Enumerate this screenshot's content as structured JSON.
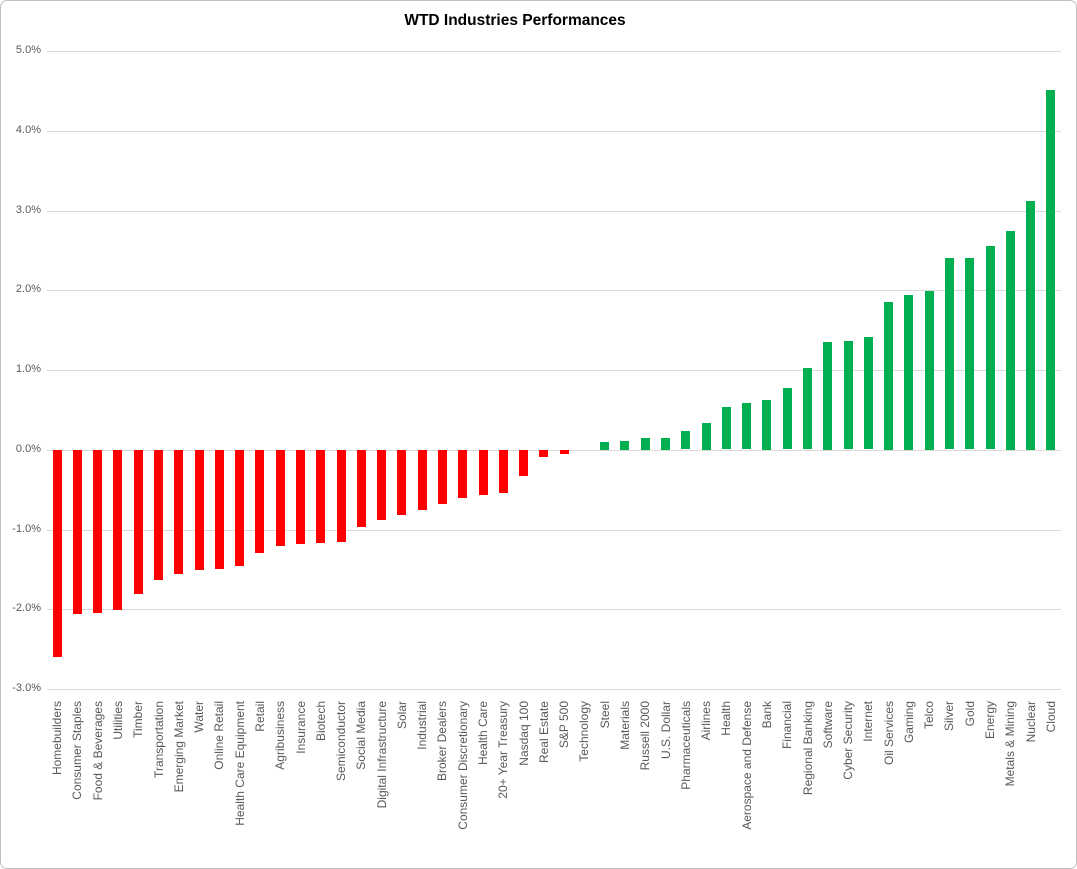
{
  "chart_data": {
    "type": "bar",
    "title": "WTD Industries Performances",
    "categories": [
      "Homebuilders",
      "Consumer Staples",
      "Food & Beverages",
      "Utilities",
      "Timber",
      "Transportation",
      "Emerging Market",
      "Water",
      "Online Retail",
      "Health Care Equipment",
      "Retail",
      "Agribusiness",
      "Insurance",
      "Biotech",
      "Semiconductor",
      "Social Media",
      "Digital Infrastructure",
      "Solar",
      "Industrial",
      "Broker Dealers",
      "Consumer Discretionary",
      "Health Care",
      "20+ Year Treasury",
      "Nasdaq 100",
      "Real Estate",
      "S&P 500",
      "Technology",
      "Steel",
      "Materials",
      "Russell 2000",
      "U.S. Dollar",
      "Pharmaceuticals",
      "Airlines",
      "Health",
      "Aerospace and Defense",
      "Bank",
      "Financial",
      "Regional Banking",
      "Software",
      "Cyber Security",
      "Internet",
      "Oil Services",
      "Gaming",
      "Telco",
      "Silver",
      "Gold",
      "Energy",
      "Metals & Mining",
      "Nuclear",
      "Cloud"
    ],
    "values": [
      -2.59,
      -2.06,
      -2.04,
      -2.01,
      -1.81,
      -1.63,
      -1.55,
      -1.5,
      -1.49,
      -1.45,
      -1.29,
      -1.21,
      -1.18,
      -1.17,
      -1.15,
      -0.97,
      -0.88,
      -0.82,
      -0.75,
      -0.68,
      -0.6,
      -0.56,
      -0.54,
      -0.32,
      -0.09,
      -0.05,
      0.0,
      0.1,
      0.11,
      0.15,
      0.15,
      0.23,
      0.34,
      0.53,
      0.58,
      0.63,
      0.77,
      1.02,
      1.35,
      1.36,
      1.41,
      1.85,
      1.94,
      1.99,
      2.4,
      2.4,
      2.55,
      2.74,
      3.12,
      4.51
    ],
    "xlabel": "",
    "ylabel": "",
    "ylim": [
      -3.0,
      5.0
    ],
    "ytick_labels": [
      "5.0%",
      "4.0%",
      "3.0%",
      "2.0%",
      "1.0%",
      "0.0%",
      "-1.0%",
      "-2.0%",
      "-3.0%"
    ],
    "ytick_values": [
      5.0,
      4.0,
      3.0,
      2.0,
      1.0,
      0.0,
      -1.0,
      -2.0,
      -3.0
    ],
    "grid": true,
    "legend": "none",
    "colors": {
      "positive_bar": "#00B050",
      "negative_bar": "#FF0000",
      "gridline": "#D9D9D9",
      "axis_text": "#595959",
      "title_text": "#000000",
      "frame_border": "#BFBFBF",
      "background": "#FFFFFF"
    }
  }
}
